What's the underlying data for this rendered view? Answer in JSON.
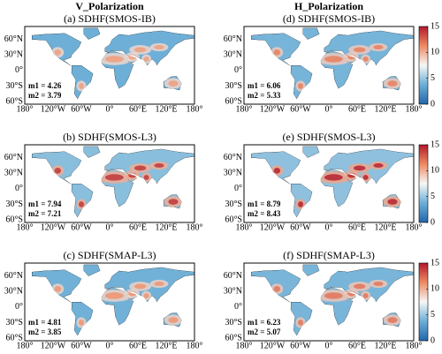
{
  "columns": [
    {
      "title": "V_Polarization",
      "panels": [
        {
          "title": "(a) SDHF(SMOS-IB)",
          "m1": "m1 = 4.26",
          "m2": "m2 = 3.79"
        },
        {
          "title": "(b) SDHF(SMOS-L3)",
          "m1": "m1 = 7.94",
          "m2": "m2 = 7.21"
        },
        {
          "title": "(c) SDHF(SMAP-L3)",
          "m1": "m1 = 4.81",
          "m2": "m2 = 3.85"
        }
      ]
    },
    {
      "title": "H_Polarization",
      "panels": [
        {
          "title": "(d) SDHF(SMOS-IB)",
          "m1": "m1 = 6.06",
          "m2": "m2 = 5.33"
        },
        {
          "title": "(e) SDHF(SMOS-L3)",
          "m1": "m1 = 8.79",
          "m2": "m2 = 8.43"
        },
        {
          "title": "(f) SDHF(SMAP-L3)",
          "m1": "m1 = 6.23",
          "m2": "m2 = 5.07"
        }
      ]
    }
  ],
  "lat_ticks": [
    {
      "value": 60,
      "label": "60°N"
    },
    {
      "value": 30,
      "label": "30°N"
    },
    {
      "value": 0,
      "label": "0°"
    },
    {
      "value": -30,
      "label": "30°S"
    },
    {
      "value": -60,
      "label": "60°S"
    }
  ],
  "lon_ticks": [
    {
      "value": -180,
      "label": "180°"
    },
    {
      "value": -120,
      "label": "120°W"
    },
    {
      "value": -60,
      "label": "60°W"
    },
    {
      "value": 0,
      "label": "0°"
    },
    {
      "value": 60,
      "label": "60°E"
    },
    {
      "value": 120,
      "label": "120°E"
    },
    {
      "value": 180,
      "label": "180°"
    }
  ],
  "colorbar": {
    "range": [
      0,
      15
    ],
    "ticks": [
      0,
      5,
      10,
      15
    ]
  }
}
